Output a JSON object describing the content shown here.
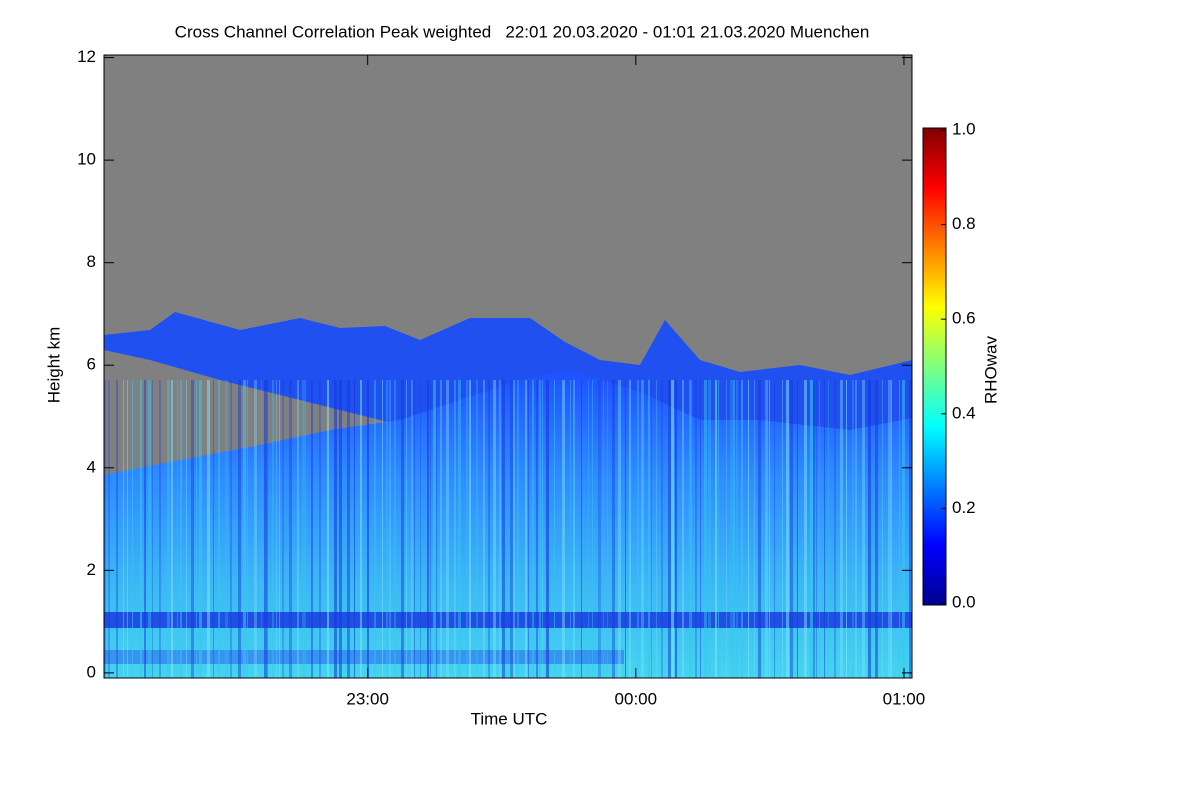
{
  "chart_data": {
    "type": "heatmap",
    "title": "Cross Channel Correlation Peak weighted   22:01 20.03.2020 - 01:01 21.03.2020 Muenchen",
    "x_label": "Time UTC",
    "y_label": "Height km",
    "xlim": [
      0.0167,
      3.03
    ],
    "xticks": [
      {
        "value": 1,
        "label": "23:00"
      },
      {
        "value": 2,
        "label": "00:00"
      },
      {
        "value": 3,
        "label": "01:00"
      }
    ],
    "ylim": [
      -0.1,
      12.05
    ],
    "yticks": [
      0,
      2,
      4,
      6,
      8,
      10,
      12
    ],
    "colorbar": {
      "label": "RHOwav",
      "lim": [
        0,
        1
      ],
      "ticks": [
        {
          "value": 0,
          "label": "0.0"
        },
        0.2,
        0.4,
        0.6,
        0.8,
        {
          "value": 1,
          "label": "1.0"
        }
      ]
    }
  }
}
